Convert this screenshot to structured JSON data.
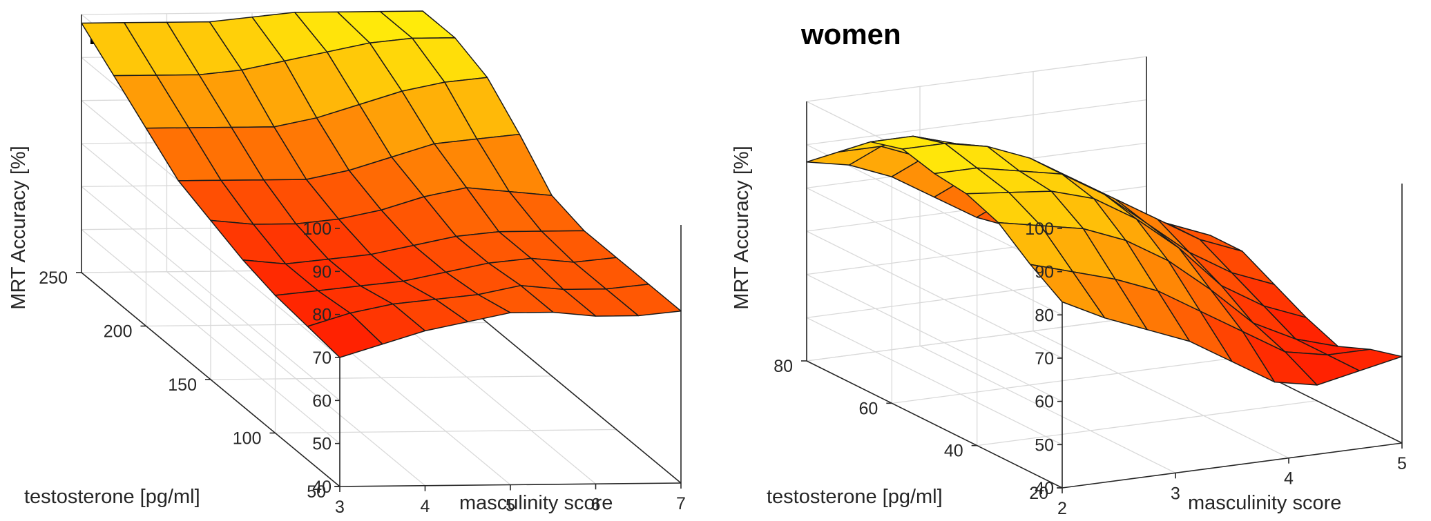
{
  "chart_data": [
    {
      "type": "surface",
      "title": "men",
      "xlabel": "masculinity score",
      "ylabel": "testosterone [pg/ml]",
      "zlabel": "MRT Accuracy [%]",
      "xlim": [
        3,
        7
      ],
      "ylim": [
        50,
        250
      ],
      "zlim": [
        40,
        100
      ],
      "x_ticks": [
        "3",
        "4",
        "5",
        "6",
        "7"
      ],
      "y_ticks": [
        "50",
        "100",
        "150",
        "200",
        "250"
      ],
      "z_ticks": [
        "40",
        "50",
        "60",
        "70",
        "80",
        "90",
        "100"
      ],
      "x": [
        3,
        3.5,
        4,
        4.5,
        5,
        5.5,
        6,
        6.5,
        7
      ],
      "y": [
        50,
        75,
        100,
        125,
        150,
        175,
        200,
        225,
        250
      ],
      "z": [
        [
          70,
          73,
          76,
          78,
          80,
          80,
          79,
          79,
          80
        ],
        [
          71,
          74,
          76,
          77,
          78,
          80,
          79,
          79,
          80
        ],
        [
          72,
          73,
          74,
          75,
          77,
          79,
          80,
          79,
          80
        ],
        [
          74,
          73,
          74,
          75,
          77,
          79,
          80,
          80,
          80
        ],
        [
          77,
          76,
          76,
          77,
          79,
          82,
          84,
          83,
          82
        ],
        [
          80,
          80,
          80,
          80,
          82,
          85,
          88,
          89,
          90
        ],
        [
          86,
          86,
          86,
          86,
          88,
          91,
          94,
          96,
          97
        ],
        [
          92,
          92,
          92,
          93,
          95,
          97,
          99,
          100,
          100
        ],
        [
          98,
          98,
          98,
          98,
          99,
          100,
          100,
          100,
          100
        ]
      ],
      "colormap": "autumn-reversed"
    },
    {
      "type": "surface",
      "title": "women",
      "xlabel": "masculinity score",
      "ylabel": "testosterone [pg/ml]",
      "zlabel": "MRT Accuracy [%]",
      "xlim": [
        2,
        5
      ],
      "ylim": [
        20,
        80
      ],
      "zlim": [
        40,
        100
      ],
      "x_ticks": [
        "2",
        "3",
        "4",
        "5"
      ],
      "y_ticks": [
        "20",
        "40",
        "60",
        "80"
      ],
      "z_ticks": [
        "40",
        "50",
        "60",
        "70",
        "80",
        "90",
        "100"
      ],
      "x": [
        2,
        2.375,
        2.75,
        3.125,
        3.5,
        3.875,
        4.25,
        4.625,
        5
      ],
      "y": [
        20,
        27.5,
        35,
        42.5,
        50,
        57.5,
        65,
        72.5,
        80
      ],
      "z": [
        [
          83,
          78,
          74,
          70,
          64,
          58,
          56,
          58,
          60
        ],
        [
          88,
          85,
          82,
          78,
          72,
          66,
          60,
          58,
          58
        ],
        [
          94,
          92,
          90,
          86,
          80,
          72,
          63,
          58,
          55
        ],
        [
          97,
          96,
          95,
          92,
          86,
          78,
          68,
          62,
          58
        ],
        [
          98,
          98,
          96,
          94,
          88,
          80,
          72,
          66,
          62
        ],
        [
          100,
          100,
          98,
          94,
          88,
          82,
          76,
          70,
          66
        ],
        [
          98,
          98,
          95,
          90,
          84,
          78,
          74,
          70,
          66
        ],
        [
          92,
          92,
          88,
          82,
          76,
          72,
          70,
          68,
          64
        ],
        [
          86,
          84,
          80,
          74,
          68,
          64,
          62,
          60,
          56
        ]
      ],
      "colormap": "autumn-reversed"
    }
  ]
}
